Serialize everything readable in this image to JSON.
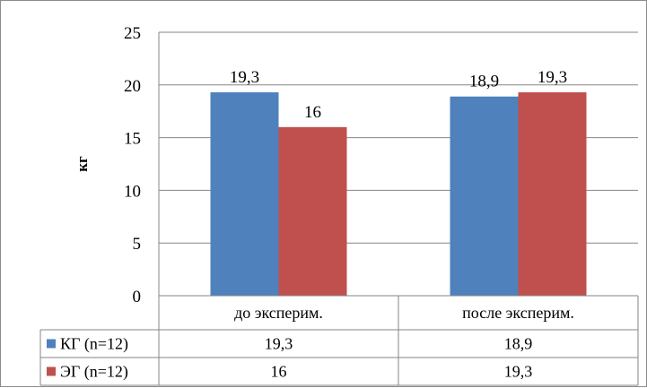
{
  "chart_data": {
    "type": "bar",
    "ylabel": "кг",
    "ylim": [
      0,
      25
    ],
    "yticks": [
      0,
      5,
      10,
      15,
      20,
      25
    ],
    "grid": true,
    "legend": "data-table",
    "categories": [
      "до эксперим.",
      "после эксперим."
    ],
    "series": [
      {
        "name": "КГ (n=12)",
        "values": [
          19.3,
          18.9
        ],
        "labels": [
          "19,3",
          "18,9"
        ],
        "color": "#4f81bd"
      },
      {
        "name": "ЭГ (n=12)",
        "values": [
          16,
          19.3
        ],
        "labels": [
          "16",
          "19,3"
        ],
        "color": "#c0504d"
      }
    ]
  }
}
